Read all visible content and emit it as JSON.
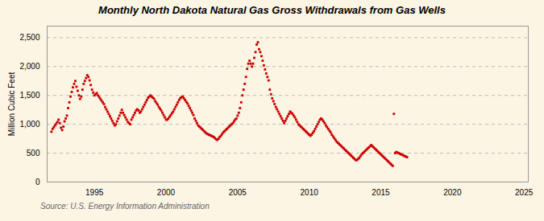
{
  "chart_data": {
    "type": "scatter",
    "title": "Monthly North Dakota Natural Gas Gross Withdrawals from Gas Wells",
    "ylabel": "Million Cubic Feet",
    "source": "Source: U.S. Energy Information Administration",
    "color": "#cc0000",
    "marker": "square",
    "grid": true,
    "xlim": [
      1991.7,
      2025.3
    ],
    "xticks": [
      1995,
      2000,
      2005,
      2010,
      2015,
      2020,
      2025
    ],
    "ylim": [
      0,
      2700
    ],
    "yticks": [
      0,
      500,
      {
        "value": 1000,
        "label": "1,000"
      },
      {
        "value": 1500,
        "label": "1,500"
      },
      {
        "value": 2000,
        "label": "2,000"
      },
      {
        "value": 2500,
        "label": "2,500"
      }
    ],
    "x": [
      1992,
      1992.083333,
      1992.166667,
      1992.25,
      1992.333333,
      1992.416667,
      1992.5,
      1992.583333,
      1992.666667,
      1992.75,
      1992.833333,
      1992.916667,
      1993,
      1993.083333,
      1993.166667,
      1993.25,
      1993.333333,
      1993.416667,
      1993.5,
      1993.583333,
      1993.666667,
      1993.75,
      1993.833333,
      1993.916667,
      1994,
      1994.083333,
      1994.166667,
      1994.25,
      1994.333333,
      1994.416667,
      1994.5,
      1994.583333,
      1994.666667,
      1994.75,
      1994.833333,
      1994.916667,
      1995,
      1995.083333,
      1995.166667,
      1995.25,
      1995.333333,
      1995.416667,
      1995.5,
      1995.583333,
      1995.666667,
      1995.75,
      1995.833333,
      1995.916667,
      1996,
      1996.083333,
      1996.166667,
      1996.25,
      1996.333333,
      1996.416667,
      1996.5,
      1996.583333,
      1996.666667,
      1996.75,
      1996.833333,
      1996.916667,
      1997,
      1997.083333,
      1997.166667,
      1997.25,
      1997.333333,
      1997.416667,
      1997.5,
      1997.583333,
      1997.666667,
      1997.75,
      1997.833333,
      1997.916667,
      1998,
      1998.083333,
      1998.166667,
      1998.25,
      1998.333333,
      1998.416667,
      1998.5,
      1998.583333,
      1998.666667,
      1998.75,
      1998.833333,
      1998.916667,
      1999,
      1999.083333,
      1999.166667,
      1999.25,
      1999.333333,
      1999.416667,
      1999.5,
      1999.583333,
      1999.666667,
      1999.75,
      1999.833333,
      1999.916667,
      2000,
      2000.083333,
      2000.166667,
      2000.25,
      2000.333333,
      2000.416667,
      2000.5,
      2000.583333,
      2000.666667,
      2000.75,
      2000.833333,
      2000.916667,
      2001,
      2001.083333,
      2001.166667,
      2001.25,
      2001.333333,
      2001.416667,
      2001.5,
      2001.583333,
      2001.666667,
      2001.75,
      2001.833333,
      2001.916667,
      2002,
      2002.083333,
      2002.166667,
      2002.25,
      2002.333333,
      2002.416667,
      2002.5,
      2002.583333,
      2002.666667,
      2002.75,
      2002.833333,
      2002.916667,
      2003,
      2003.083333,
      2003.166667,
      2003.25,
      2003.333333,
      2003.416667,
      2003.5,
      2003.583333,
      2003.666667,
      2003.75,
      2003.833333,
      2003.916667,
      2004,
      2004.083333,
      2004.166667,
      2004.25,
      2004.333333,
      2004.416667,
      2004.5,
      2004.583333,
      2004.666667,
      2004.75,
      2004.833333,
      2004.916667,
      2005,
      2005.083333,
      2005.166667,
      2005.25,
      2005.333333,
      2005.416667,
      2005.5,
      2005.583333,
      2005.666667,
      2005.75,
      2005.833333,
      2005.916667,
      2006,
      2006.083333,
      2006.166667,
      2006.25,
      2006.333333,
      2006.416667,
      2006.5,
      2006.583333,
      2006.666667,
      2006.75,
      2006.833333,
      2006.916667,
      2007,
      2007.083333,
      2007.166667,
      2007.25,
      2007.333333,
      2007.416667,
      2007.5,
      2007.583333,
      2007.666667,
      2007.75,
      2007.833333,
      2007.916667,
      2008,
      2008.083333,
      2008.166667,
      2008.25,
      2008.333333,
      2008.416667,
      2008.5,
      2008.583333,
      2008.666667,
      2008.75,
      2008.833333,
      2008.916667,
      2009,
      2009.083333,
      2009.166667,
      2009.25,
      2009.333333,
      2009.416667,
      2009.5,
      2009.583333,
      2009.666667,
      2009.75,
      2009.833333,
      2009.916667,
      2010,
      2010.083333,
      2010.166667,
      2010.25,
      2010.333333,
      2010.416667,
      2010.5,
      2010.583333,
      2010.666667,
      2010.75,
      2010.833333,
      2010.916667,
      2011,
      2011.083333,
      2011.166667,
      2011.25,
      2011.333333,
      2011.416667,
      2011.5,
      2011.583333,
      2011.666667,
      2011.75,
      2011.833333,
      2011.916667,
      2012,
      2012.083333,
      2012.166667,
      2012.25,
      2012.333333,
      2012.416667,
      2012.5,
      2012.583333,
      2012.666667,
      2012.75,
      2012.833333,
      2012.916667,
      2013,
      2013.083333,
      2013.166667,
      2013.25,
      2013.333333,
      2013.416667,
      2013.5,
      2013.583333,
      2013.666667,
      2013.75,
      2013.833333,
      2013.916667,
      2014,
      2014.083333,
      2014.166667,
      2014.25,
      2014.333333,
      2014.416667,
      2014.5,
      2014.583333,
      2014.666667,
      2014.75,
      2014.833333,
      2014.916667,
      2015,
      2015.083333,
      2015.166667,
      2015.25,
      2015.333333,
      2015.416667,
      2015.5,
      2015.583333,
      2015.666667,
      2015.75,
      2015.833333,
      2015.916667,
      2016,
      2016.083333,
      2016.166667,
      2016.25,
      2016.333333,
      2016.416667,
      2016.5,
      2016.583333,
      2016.666667,
      2016.75,
      2016.833333
    ],
    "values": [
      870,
      920,
      950,
      980,
      1010,
      1040,
      1080,
      1020,
      940,
      900,
      960,
      1050,
      1100,
      1150,
      1280,
      1380,
      1480,
      1560,
      1640,
      1700,
      1750,
      1650,
      1580,
      1500,
      1440,
      1480,
      1600,
      1700,
      1750,
      1800,
      1850,
      1820,
      1760,
      1680,
      1600,
      1550,
      1500,
      1520,
      1540,
      1500,
      1470,
      1440,
      1410,
      1380,
      1350,
      1300,
      1260,
      1220,
      1180,
      1140,
      1100,
      1060,
      1020,
      980,
      1000,
      1050,
      1100,
      1150,
      1200,
      1250,
      1200,
      1160,
      1120,
      1080,
      1040,
      1020,
      1000,
      1080,
      1120,
      1160,
      1200,
      1240,
      1260,
      1240,
      1200,
      1220,
      1260,
      1300,
      1340,
      1380,
      1420,
      1460,
      1480,
      1500,
      1480,
      1460,
      1440,
      1400,
      1370,
      1340,
      1300,
      1270,
      1240,
      1200,
      1160,
      1120,
      1080,
      1080,
      1100,
      1130,
      1160,
      1190,
      1220,
      1260,
      1300,
      1340,
      1380,
      1420,
      1450,
      1470,
      1480,
      1450,
      1420,
      1390,
      1360,
      1320,
      1280,
      1240,
      1200,
      1160,
      1100,
      1060,
      1020,
      980,
      960,
      940,
      920,
      900,
      880,
      860,
      840,
      830,
      820,
      810,
      800,
      790,
      780,
      760,
      740,
      730,
      750,
      780,
      800,
      830,
      860,
      880,
      900,
      920,
      940,
      960,
      980,
      1000,
      1020,
      1050,
      1080,
      1100,
      1150,
      1200,
      1280,
      1380,
      1500,
      1600,
      1700,
      1820,
      1960,
      2050,
      2100,
      2050,
      2000,
      2050,
      2150,
      2250,
      2380,
      2420,
      2300,
      2250,
      2180,
      2100,
      2020,
      1950,
      1880,
      1820,
      1760,
      1600,
      1520,
      1450,
      1400,
      1350,
      1300,
      1260,
      1220,
      1180,
      1140,
      1100,
      1060,
      1020,
      1060,
      1100,
      1140,
      1180,
      1220,
      1200,
      1180,
      1150,
      1120,
      1080,
      1040,
      1000,
      980,
      960,
      940,
      920,
      900,
      880,
      860,
      840,
      820,
      800,
      820,
      850,
      880,
      920,
      960,
      1000,
      1040,
      1080,
      1100,
      1080,
      1050,
      1020,
      980,
      950,
      920,
      890,
      860,
      820,
      790,
      760,
      730,
      700,
      680,
      660,
      640,
      620,
      600,
      580,
      560,
      540,
      520,
      500,
      480,
      460,
      440,
      420,
      400,
      380,
      380,
      400,
      420,
      450,
      480,
      500,
      520,
      540,
      560,
      580,
      600,
      620,
      640,
      620,
      600,
      580,
      560,
      540,
      520,
      500,
      480,
      460,
      440,
      420,
      400,
      380,
      360,
      340,
      320,
      300,
      280,
      1180,
      500,
      520,
      510,
      500,
      490,
      480,
      470,
      460,
      450,
      440,
      430
    ]
  }
}
